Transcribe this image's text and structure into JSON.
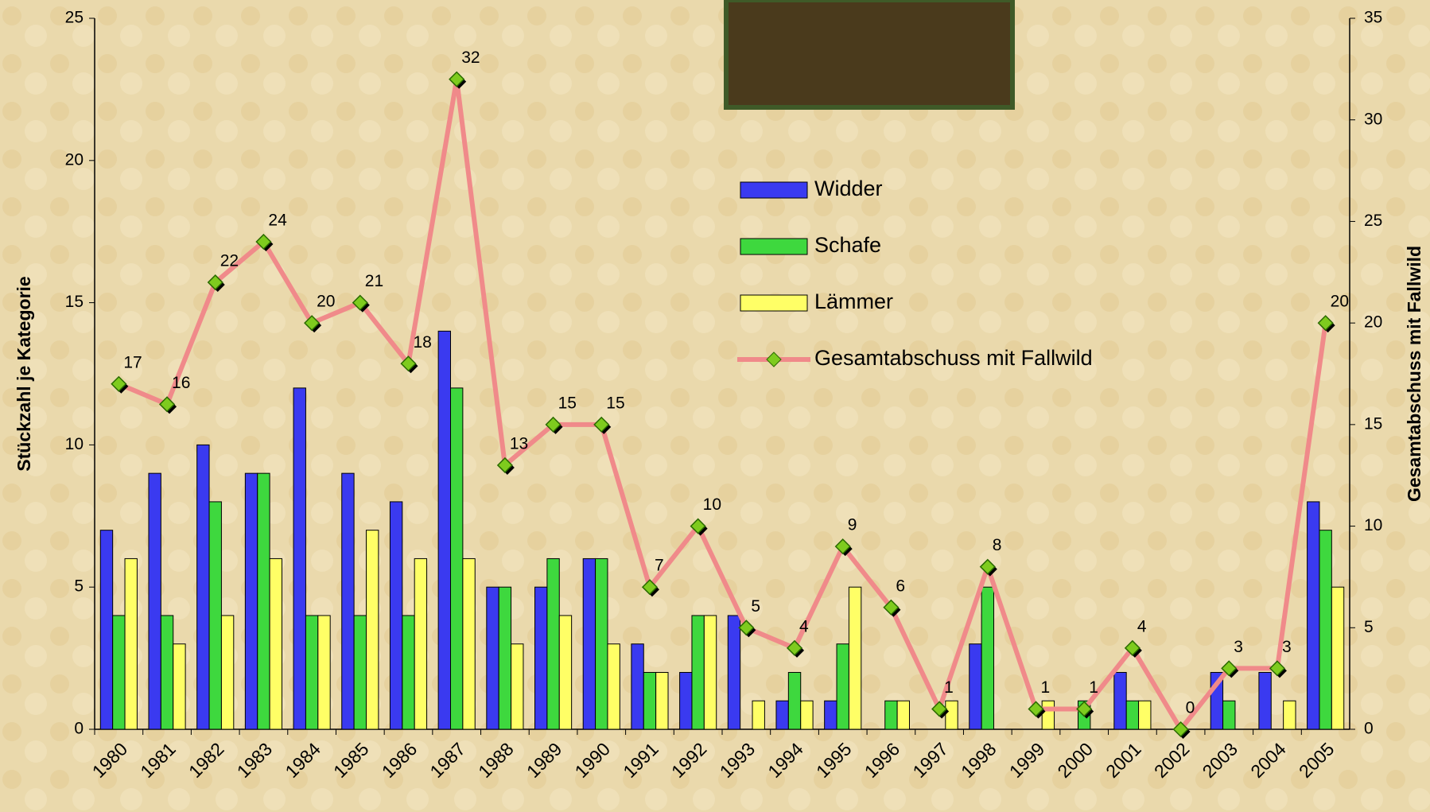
{
  "chart_data": {
    "type": "bar-line",
    "categories": [
      "1980",
      "1981",
      "1982",
      "1983",
      "1984",
      "1985",
      "1986",
      "1987",
      "1988",
      "1989",
      "1990",
      "1991",
      "1992",
      "1993",
      "1994",
      "1995",
      "1996",
      "1997",
      "1998",
      "1999",
      "2000",
      "2001",
      "2002",
      "2003",
      "2004",
      "2005"
    ],
    "y_label": "Stückzahl je Kategorie",
    "y2_label": "Gesamtabschuss mit Fallwild",
    "ylim": [
      0,
      25
    ],
    "yticks": [
      0,
      5,
      10,
      15,
      20,
      25
    ],
    "y2lim": [
      0,
      35
    ],
    "y2ticks": [
      0,
      5,
      10,
      15,
      20,
      25,
      30,
      35
    ],
    "series": [
      {
        "name": "Widder",
        "type": "bar",
        "color": "#3a3af0",
        "values": [
          7,
          9,
          10,
          9,
          12,
          9,
          8,
          14,
          5,
          5,
          6,
          3,
          2,
          4,
          1,
          1,
          0,
          0,
          3,
          0,
          0,
          2,
          0,
          2,
          2,
          8
        ]
      },
      {
        "name": "Schafe",
        "type": "bar",
        "color": "#3ed83e",
        "values": [
          4,
          4,
          8,
          9,
          4,
          4,
          4,
          12,
          5,
          6,
          6,
          2,
          4,
          0,
          2,
          3,
          1,
          0,
          5,
          0,
          1,
          1,
          0,
          1,
          0,
          7
        ]
      },
      {
        "name": "Lämmer",
        "type": "bar",
        "color": "#ffff66",
        "values": [
          6,
          3,
          4,
          6,
          4,
          7,
          6,
          6,
          3,
          4,
          3,
          2,
          4,
          1,
          1,
          5,
          1,
          1,
          0,
          1,
          0,
          1,
          0,
          0,
          1,
          5
        ]
      },
      {
        "name": "Gesamtabschuss mit Fallwild",
        "type": "line",
        "axis": "y2",
        "color": "#f08a8a",
        "marker_color": "#7ecb1e",
        "values": [
          17,
          16,
          22,
          24,
          20,
          21,
          18,
          32,
          13,
          15,
          15,
          7,
          10,
          5,
          4,
          9,
          6,
          1,
          8,
          1,
          1,
          4,
          0,
          3,
          3,
          20
        ]
      }
    ]
  }
}
